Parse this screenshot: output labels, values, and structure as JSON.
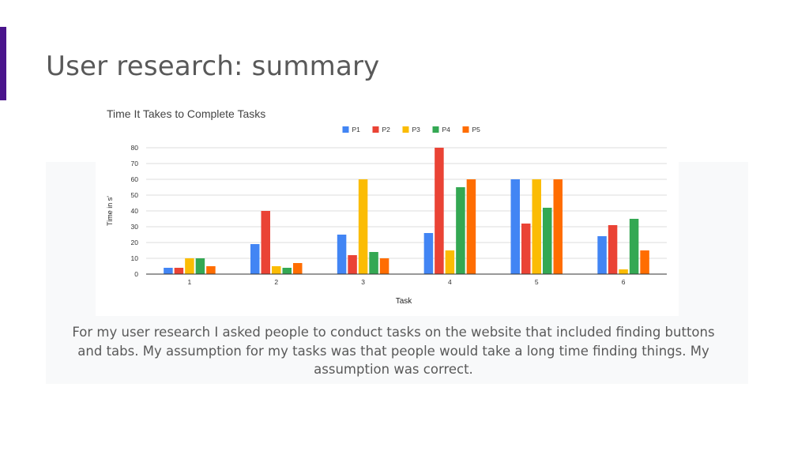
{
  "slide": {
    "title": "User research: summary",
    "summary": "For my user research I asked people to conduct tasks on the website that included finding buttons and tabs. My assumption for my tasks was that people would take a long time finding things. My assumption was correct."
  },
  "colors": {
    "accent_bar": "#4a148c",
    "panel_bg": "#f8f9fa"
  },
  "chart_data": {
    "type": "bar",
    "title": "Time It Takes to Complete Tasks",
    "xlabel": "Task",
    "ylabel": "Time in s'",
    "categories": [
      "1",
      "2",
      "3",
      "4",
      "5",
      "6"
    ],
    "ylim": [
      0,
      80
    ],
    "yticks": [
      0,
      10,
      20,
      30,
      40,
      50,
      60,
      70,
      80
    ],
    "grid": true,
    "legend_position": "top",
    "series": [
      {
        "name": "P1",
        "color": "#4285f4",
        "values": [
          4,
          19,
          25,
          26,
          60,
          24
        ]
      },
      {
        "name": "P2",
        "color": "#ea4335",
        "values": [
          4,
          40,
          12,
          80,
          32,
          31
        ]
      },
      {
        "name": "P3",
        "color": "#fbbc04",
        "values": [
          10,
          5,
          60,
          15,
          60,
          3
        ]
      },
      {
        "name": "P4",
        "color": "#34a853",
        "values": [
          10,
          4,
          14,
          55,
          42,
          35
        ]
      },
      {
        "name": "P5",
        "color": "#ff6d01",
        "values": [
          5,
          7,
          10,
          60,
          60,
          15
        ]
      }
    ]
  }
}
